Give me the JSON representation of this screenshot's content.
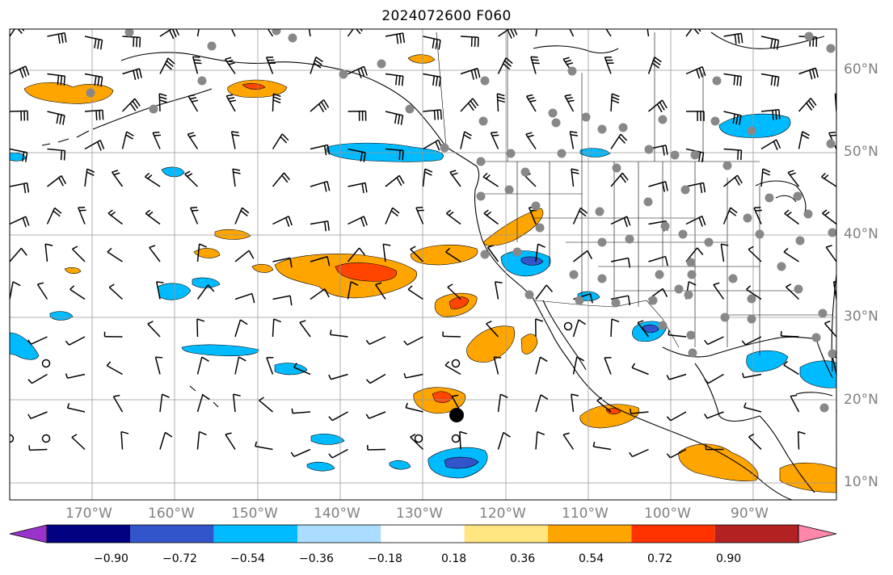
{
  "title": "2024072600 F060",
  "lat_labels": [
    "60°N",
    "50°N",
    "40°N",
    "30°N",
    "20°N",
    "10°N"
  ],
  "lon_labels": [
    "170°W",
    "160°W",
    "150°W",
    "140°W",
    "130°W",
    "120°W",
    "110°W",
    "100°W",
    "90°W"
  ],
  "colorbar": {
    "labels": [
      "−0.90",
      "−0.72",
      "−0.54",
      "−0.36",
      "−0.18",
      "0.18",
      "0.36",
      "0.54",
      "0.72",
      "0.90"
    ],
    "colors": [
      "#9933cc",
      "#000080",
      "#3355cc",
      "#00bbff",
      "#aaddff",
      "#ffffff",
      "#ffe680",
      "#ffa500",
      "#ff3300",
      "#b22222",
      "#ff88aa"
    ]
  },
  "map": {
    "extent": {
      "lon_min": -180,
      "lon_max": -80,
      "lat_min": 8,
      "lat_max": 65
    },
    "gridline_color": "#999999",
    "coast_color": "#000000",
    "station_color": "#888888",
    "marker_color": "#000000"
  }
}
